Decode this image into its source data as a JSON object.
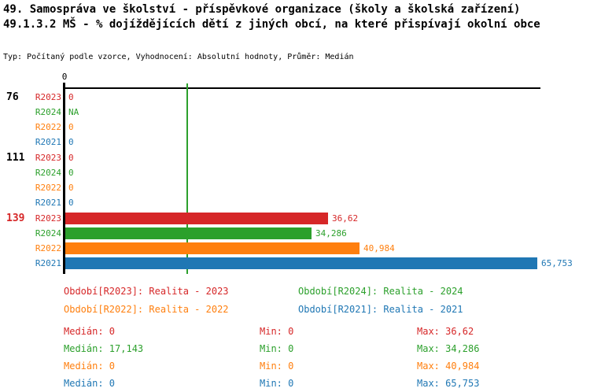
{
  "header": {
    "title_line1": "49. Samospráva ve školství - příspěvkové organizace (školy a školská zařízení)",
    "title_line2": "49.1.3.2 MŠ - % dojíždějících dětí z jiných obcí, na které přispívají okolní obce",
    "meta": "Typ: Počítaný podle vzorce, Vyhodnocení: Absolutní hodnoty, Průměr: Medián"
  },
  "colors": {
    "R2023": "#d62728",
    "R2024": "#2ca02c",
    "R2022": "#ff7f0e",
    "R2021": "#1f77b4",
    "axis": "#000000",
    "median_line": "#2ca02c",
    "group_label_default": "#000000",
    "group_label_highlight": "#d62728"
  },
  "chart_data": {
    "type": "bar",
    "orientation": "horizontal",
    "title": "49.1.3.2 MŠ - % dojíždějících dětí z jiných obcí, na které přispívají okolní obce",
    "axis_tick_label": "0",
    "xlim": [
      0,
      65.753
    ],
    "scale_max": 65.753,
    "grid": false,
    "median_line": {
      "series": "R2024",
      "value": 17.143
    },
    "series_order": [
      "R2023",
      "R2024",
      "R2022",
      "R2021"
    ],
    "groups": [
      {
        "label": "76",
        "highlight": false,
        "rows": [
          {
            "series": "R2023",
            "value": 0,
            "display": "0"
          },
          {
            "series": "R2024",
            "value": null,
            "display": "NA"
          },
          {
            "series": "R2022",
            "value": 0,
            "display": "0"
          },
          {
            "series": "R2021",
            "value": 0,
            "display": "0"
          }
        ]
      },
      {
        "label": "111",
        "highlight": false,
        "rows": [
          {
            "series": "R2023",
            "value": 0,
            "display": "0"
          },
          {
            "series": "R2024",
            "value": 0,
            "display": "0"
          },
          {
            "series": "R2022",
            "value": 0,
            "display": "0"
          },
          {
            "series": "R2021",
            "value": 0,
            "display": "0"
          }
        ]
      },
      {
        "label": "139",
        "highlight": true,
        "rows": [
          {
            "series": "R2023",
            "value": 36.62,
            "display": "36,62"
          },
          {
            "series": "R2024",
            "value": 34.286,
            "display": "34,286"
          },
          {
            "series": "R2022",
            "value": 40.984,
            "display": "40,984"
          },
          {
            "series": "R2021",
            "value": 65.753,
            "display": "65,753"
          }
        ]
      }
    ]
  },
  "legend": {
    "items": [
      {
        "key": "R2023",
        "label": "Období[R2023]: Realita - 2023"
      },
      {
        "key": "R2024",
        "label": "Období[R2024]: Realita - 2024"
      },
      {
        "key": "R2022",
        "label": "Období[R2022]: Realita - 2022"
      },
      {
        "key": "R2021",
        "label": "Období[R2021]: Realita - 2021"
      }
    ]
  },
  "stats": {
    "median_label": "Medián",
    "min_label": "Min",
    "max_label": "Max",
    "rows": [
      {
        "key": "R2023",
        "median": "0",
        "min": "0",
        "max": "36,62"
      },
      {
        "key": "R2024",
        "median": "17,143",
        "min": "0",
        "max": "34,286"
      },
      {
        "key": "R2022",
        "median": "0",
        "min": "0",
        "max": "40,984"
      },
      {
        "key": "R2021",
        "median": "0",
        "min": "0",
        "max": "65,753"
      }
    ]
  }
}
